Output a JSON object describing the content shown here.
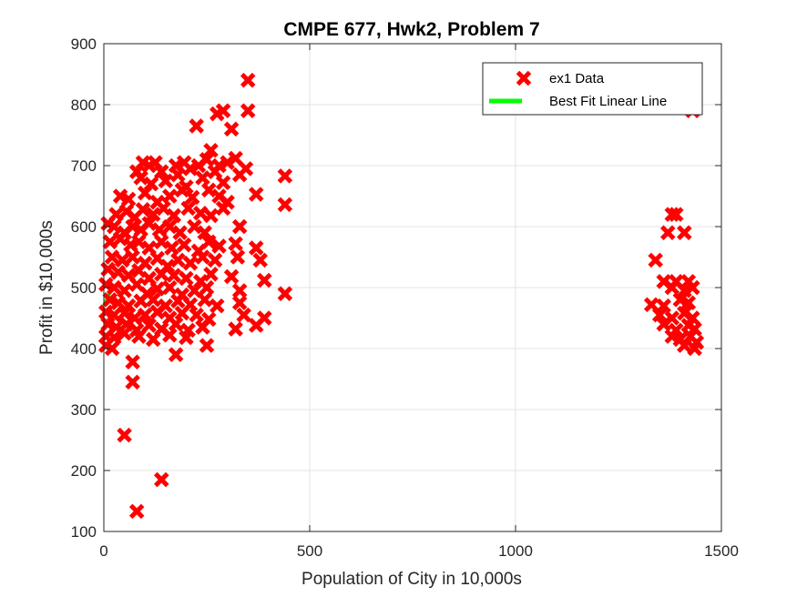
{
  "chart_data": {
    "type": "scatter",
    "title": "CMPE 677, Hwk2, Problem 7",
    "xlabel": "Population of City in 10,000s",
    "ylabel": "Profit in $10,000s",
    "xlim": [
      0,
      1500
    ],
    "ylim": [
      100,
      900
    ],
    "xticks": [
      "0",
      "500",
      "1000",
      "1500"
    ],
    "yticks": [
      "100",
      "200",
      "300",
      "400",
      "500",
      "600",
      "700",
      "800",
      "900"
    ],
    "grid": true,
    "legend_position": "top-right",
    "colors": {
      "data": "#ff0000",
      "fit": "#00ff00"
    },
    "series": [
      {
        "name": "ex1 Data",
        "marker": "x",
        "points": [
          [
            350,
            840
          ],
          [
            290,
            790
          ],
          [
            350,
            790
          ],
          [
            275,
            785
          ],
          [
            225,
            765
          ],
          [
            310,
            760
          ],
          [
            1430,
            790
          ],
          [
            95,
            705
          ],
          [
            110,
            700
          ],
          [
            80,
            690
          ],
          [
            125,
            705
          ],
          [
            140,
            690
          ],
          [
            175,
            700
          ],
          [
            195,
            705
          ],
          [
            210,
            695
          ],
          [
            230,
            700
          ],
          [
            250,
            710
          ],
          [
            260,
            725
          ],
          [
            280,
            700
          ],
          [
            300,
            705
          ],
          [
            320,
            712
          ],
          [
            345,
            695
          ],
          [
            90,
            680
          ],
          [
            115,
            670
          ],
          [
            150,
            675
          ],
          [
            180,
            685
          ],
          [
            200,
            665
          ],
          [
            240,
            680
          ],
          [
            270,
            690
          ],
          [
            290,
            672
          ],
          [
            330,
            685
          ],
          [
            440,
            683
          ],
          [
            40,
            650
          ],
          [
            60,
            645
          ],
          [
            100,
            655
          ],
          [
            130,
            640
          ],
          [
            160,
            650
          ],
          [
            190,
            660
          ],
          [
            215,
            648
          ],
          [
            255,
            660
          ],
          [
            280,
            650
          ],
          [
            300,
            640
          ],
          [
            370,
            653
          ],
          [
            440,
            636
          ],
          [
            30,
            620
          ],
          [
            55,
            625
          ],
          [
            75,
            615
          ],
          [
            95,
            628
          ],
          [
            120,
            620
          ],
          [
            145,
            630
          ],
          [
            170,
            618
          ],
          [
            205,
            630
          ],
          [
            235,
            622
          ],
          [
            260,
            618
          ],
          [
            290,
            630
          ],
          [
            10,
            605
          ],
          [
            25,
            600
          ],
          [
            50,
            590
          ],
          [
            70,
            600
          ],
          [
            90,
            595
          ],
          [
            110,
            605
          ],
          [
            135,
            595
          ],
          [
            160,
            600
          ],
          [
            185,
            590
          ],
          [
            220,
            600
          ],
          [
            245,
            590
          ],
          [
            330,
            600
          ],
          [
            1380,
            620
          ],
          [
            1390,
            620
          ],
          [
            15,
            575
          ],
          [
            40,
            580
          ],
          [
            65,
            570
          ],
          [
            85,
            575
          ],
          [
            110,
            565
          ],
          [
            140,
            575
          ],
          [
            165,
            565
          ],
          [
            195,
            570
          ],
          [
            230,
            560
          ],
          [
            255,
            575
          ],
          [
            280,
            568
          ],
          [
            320,
            572
          ],
          [
            370,
            565
          ],
          [
            1370,
            590
          ],
          [
            1410,
            590
          ],
          [
            20,
            550
          ],
          [
            45,
            545
          ],
          [
            70,
            550
          ],
          [
            100,
            540
          ],
          [
            130,
            548
          ],
          [
            155,
            535
          ],
          [
            180,
            545
          ],
          [
            210,
            540
          ],
          [
            240,
            550
          ],
          [
            270,
            545
          ],
          [
            325,
            550
          ],
          [
            380,
            545
          ],
          [
            1340,
            545
          ],
          [
            10,
            530
          ],
          [
            35,
            525
          ],
          [
            60,
            520
          ],
          [
            85,
            528
          ],
          [
            110,
            515
          ],
          [
            140,
            522
          ],
          [
            170,
            520
          ],
          [
            200,
            515
          ],
          [
            235,
            510
          ],
          [
            260,
            522
          ],
          [
            310,
            518
          ],
          [
            390,
            512
          ],
          [
            1360,
            510
          ],
          [
            1390,
            510
          ],
          [
            1420,
            510
          ],
          [
            5,
            505
          ],
          [
            25,
            500
          ],
          [
            50,
            495
          ],
          [
            80,
            505
          ],
          [
            105,
            490
          ],
          [
            130,
            498
          ],
          [
            160,
            500
          ],
          [
            190,
            488
          ],
          [
            220,
            495
          ],
          [
            250,
            500
          ],
          [
            330,
            495
          ],
          [
            440,
            490
          ],
          [
            1380,
            500
          ],
          [
            1410,
            495
          ],
          [
            1430,
            500
          ],
          [
            15,
            480
          ],
          [
            35,
            475
          ],
          [
            60,
            470
          ],
          [
            90,
            478
          ],
          [
            120,
            480
          ],
          [
            150,
            470
          ],
          [
            180,
            478
          ],
          [
            210,
            472
          ],
          [
            245,
            480
          ],
          [
            275,
            470
          ],
          [
            330,
            475
          ],
          [
            1330,
            472
          ],
          [
            1360,
            470
          ],
          [
            1400,
            480
          ],
          [
            1420,
            475
          ],
          [
            5,
            460
          ],
          [
            25,
            455
          ],
          [
            50,
            458
          ],
          [
            75,
            450
          ],
          [
            100,
            455
          ],
          [
            130,
            460
          ],
          [
            160,
            450
          ],
          [
            190,
            458
          ],
          [
            225,
            455
          ],
          [
            255,
            448
          ],
          [
            340,
            455
          ],
          [
            390,
            450
          ],
          [
            1350,
            455
          ],
          [
            1380,
            450
          ],
          [
            1410,
            458
          ],
          [
            1430,
            450
          ],
          [
            10,
            440
          ],
          [
            30,
            435
          ],
          [
            55,
            440
          ],
          [
            80,
            430
          ],
          [
            110,
            438
          ],
          [
            140,
            432
          ],
          [
            175,
            440
          ],
          [
            205,
            430
          ],
          [
            240,
            435
          ],
          [
            320,
            432
          ],
          [
            370,
            438
          ],
          [
            1360,
            440
          ],
          [
            1390,
            430
          ],
          [
            1420,
            438
          ],
          [
            1435,
            432
          ],
          [
            5,
            420
          ],
          [
            25,
            418
          ],
          [
            50,
            425
          ],
          [
            85,
            420
          ],
          [
            120,
            415
          ],
          [
            160,
            422
          ],
          [
            200,
            418
          ],
          [
            1380,
            420
          ],
          [
            1400,
            415
          ],
          [
            1425,
            420
          ],
          [
            1440,
            410
          ],
          [
            5,
            405
          ],
          [
            20,
            400
          ],
          [
            250,
            405
          ],
          [
            1410,
            405
          ],
          [
            1435,
            400
          ],
          [
            175,
            390
          ],
          [
            70,
            378
          ],
          [
            70,
            345
          ],
          [
            50,
            258
          ],
          [
            140,
            185
          ],
          [
            80,
            133
          ]
        ]
      },
      {
        "name": "Best Fit Linear Line",
        "line": true,
        "points": [
          [
            0,
            470
          ],
          [
            20,
            500
          ]
        ]
      }
    ]
  }
}
